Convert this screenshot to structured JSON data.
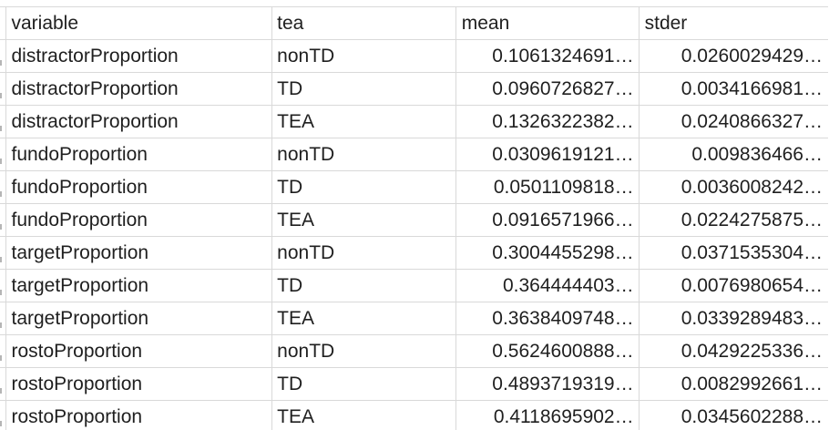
{
  "columns": [
    "variable",
    "tea",
    "mean",
    "stder"
  ],
  "rows": [
    {
      "variable": "distractorProportion",
      "tea": "nonTD",
      "mean": "0.1061324691…",
      "stder": "0.0260029429…"
    },
    {
      "variable": "distractorProportion",
      "tea": "TD",
      "mean": "0.0960726827…",
      "stder": "0.0034166981…"
    },
    {
      "variable": "distractorProportion",
      "tea": "TEA",
      "mean": "0.1326322382…",
      "stder": "0.0240866327…"
    },
    {
      "variable": "fundoProportion",
      "tea": "nonTD",
      "mean": "0.0309619121…",
      "stder": "0.009836466…"
    },
    {
      "variable": "fundoProportion",
      "tea": "TD",
      "mean": "0.0501109818…",
      "stder": "0.0036008242…"
    },
    {
      "variable": "fundoProportion",
      "tea": "TEA",
      "mean": "0.0916571966…",
      "stder": "0.0224275875…"
    },
    {
      "variable": "targetProportion",
      "tea": "nonTD",
      "mean": "0.3004455298…",
      "stder": "0.0371535304…"
    },
    {
      "variable": "targetProportion",
      "tea": "TD",
      "mean": "0.364444403…",
      "stder": "0.0076980654…"
    },
    {
      "variable": "targetProportion",
      "tea": "TEA",
      "mean": "0.3638409748…",
      "stder": "0.0339289483…"
    },
    {
      "variable": "rostoProportion",
      "tea": "nonTD",
      "mean": "0.5624600888…",
      "stder": "0.0429225336…"
    },
    {
      "variable": "rostoProportion",
      "tea": "TD",
      "mean": "0.4893719319…",
      "stder": "0.0082992661…"
    },
    {
      "variable": "rostoProportion",
      "tea": "TEA",
      "mean": "0.4118695902…",
      "stder": "0.0345602288…"
    }
  ],
  "colors": {
    "grid": "#d9d9d9",
    "text": "#1f1f1f",
    "background": "#ffffff"
  }
}
